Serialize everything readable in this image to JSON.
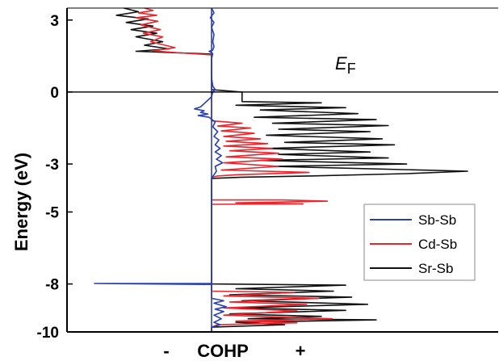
{
  "chart_data": {
    "type": "line",
    "orientation": "vertical-energy",
    "title": "",
    "xlabel": "COHP",
    "xlabel_negative": "-",
    "xlabel_positive": "+",
    "ylabel": "Energy (eV)",
    "ylim": [
      -10,
      3.5
    ],
    "xlim": [
      -1,
      1
    ],
    "yticks": [
      {
        "value": 3,
        "label": "3"
      },
      {
        "value": 0,
        "label": "0"
      },
      {
        "value": -3,
        "label": "-3"
      },
      {
        "value": -5,
        "label": "-5"
      },
      {
        "value": -8,
        "label": "-8"
      },
      {
        "value": -10,
        "label": "-10"
      }
    ],
    "fermi_label_main": "E",
    "fermi_label_sub": "F",
    "fermi_energy": 0,
    "legend_position": "lower-right",
    "series": [
      {
        "name": "Sb-Sb",
        "color": "#2b3fb0",
        "points": [
          [
            0.0,
            3.5
          ],
          [
            0.02,
            3.3
          ],
          [
            -0.01,
            3.1
          ],
          [
            0.02,
            2.9
          ],
          [
            0.0,
            2.7
          ],
          [
            0.02,
            2.4
          ],
          [
            0.01,
            2.1
          ],
          [
            0.02,
            1.9
          ],
          [
            0.01,
            1.75
          ],
          [
            -0.02,
            1.7
          ],
          [
            0.01,
            1.6
          ],
          [
            0.0,
            1.4
          ],
          [
            0.0,
            0.6
          ],
          [
            0.01,
            0.25
          ],
          [
            0.03,
            0.1
          ],
          [
            0.01,
            0.0
          ],
          [
            0.0,
            -0.2
          ],
          [
            -0.09,
            -0.62
          ],
          [
            -0.14,
            -0.7
          ],
          [
            -0.06,
            -0.78
          ],
          [
            -0.09,
            -0.85
          ],
          [
            -0.03,
            -0.92
          ],
          [
            -0.11,
            -0.98
          ],
          [
            -0.02,
            -1.05
          ],
          [
            0.03,
            -1.25
          ],
          [
            0.01,
            -1.45
          ],
          [
            0.05,
            -1.65
          ],
          [
            0.02,
            -1.85
          ],
          [
            0.06,
            -2.0
          ],
          [
            0.03,
            -2.2
          ],
          [
            0.07,
            -2.35
          ],
          [
            0.03,
            -2.5
          ],
          [
            0.08,
            -2.65
          ],
          [
            0.04,
            -2.8
          ],
          [
            0.09,
            -2.95
          ],
          [
            0.03,
            -3.1
          ],
          [
            0.04,
            -3.3
          ],
          [
            0.02,
            -3.45
          ],
          [
            0.0,
            -3.6
          ],
          [
            0.0,
            -7.98
          ],
          [
            -0.96,
            -7.98
          ],
          [
            0.0,
            -8.02
          ],
          [
            0.0,
            -8.6
          ],
          [
            0.1,
            -8.7
          ],
          [
            0.02,
            -8.8
          ],
          [
            0.12,
            -8.95
          ],
          [
            0.03,
            -9.05
          ],
          [
            0.1,
            -9.15
          ],
          [
            0.02,
            -9.3
          ],
          [
            0.08,
            -9.45
          ],
          [
            0.02,
            -9.6
          ],
          [
            0.07,
            -9.7
          ],
          [
            0.0,
            -9.8
          ],
          [
            0.0,
            -10
          ]
        ]
      },
      {
        "name": "Cd-Sb",
        "color": "#e8262e",
        "points": [
          [
            -0.55,
            3.5
          ],
          [
            -0.48,
            3.4
          ],
          [
            -0.6,
            3.3
          ],
          [
            -0.45,
            3.2
          ],
          [
            -0.62,
            3.1
          ],
          [
            -0.44,
            2.95
          ],
          [
            -0.58,
            2.8
          ],
          [
            -0.42,
            2.6
          ],
          [
            -0.56,
            2.45
          ],
          [
            -0.4,
            2.3
          ],
          [
            -0.5,
            2.1
          ],
          [
            -0.3,
            1.85
          ],
          [
            -0.48,
            1.72
          ],
          [
            -0.3,
            1.65
          ],
          [
            -0.1,
            1.58
          ],
          [
            0.0,
            1.55
          ],
          [
            0.0,
            -1.2
          ],
          [
            0.25,
            -1.3
          ],
          [
            0.05,
            -1.42
          ],
          [
            0.32,
            -1.5
          ],
          [
            0.08,
            -1.62
          ],
          [
            0.35,
            -1.72
          ],
          [
            0.1,
            -1.85
          ],
          [
            0.4,
            -1.95
          ],
          [
            0.12,
            -2.05
          ],
          [
            0.46,
            -2.15
          ],
          [
            0.1,
            -2.25
          ],
          [
            0.5,
            -2.35
          ],
          [
            0.15,
            -2.45
          ],
          [
            0.55,
            -2.55
          ],
          [
            0.12,
            -2.7
          ],
          [
            0.58,
            -2.8
          ],
          [
            0.1,
            -2.95
          ],
          [
            0.55,
            -3.1
          ],
          [
            0.08,
            -3.25
          ],
          [
            0.8,
            -3.35
          ],
          [
            0.2,
            -3.45
          ],
          [
            0.05,
            -3.5
          ],
          [
            0.0,
            -3.55
          ],
          [
            0.0,
            -4.5
          ],
          [
            0.58,
            -4.5
          ],
          [
            0.95,
            -4.55
          ],
          [
            0.2,
            -4.62
          ],
          [
            0.75,
            -4.66
          ],
          [
            0.0,
            -4.68
          ],
          [
            0.0,
            -8.3
          ],
          [
            0.68,
            -8.35
          ],
          [
            0.1,
            -8.5
          ],
          [
            0.88,
            -8.6
          ],
          [
            0.15,
            -8.75
          ],
          [
            0.78,
            -8.85
          ],
          [
            0.1,
            -9.0
          ],
          [
            0.7,
            -9.12
          ],
          [
            0.1,
            -9.3
          ],
          [
            0.99,
            -9.45
          ],
          [
            0.2,
            -9.55
          ],
          [
            0.7,
            -9.62
          ],
          [
            0.05,
            -9.7
          ],
          [
            0.0,
            -9.8
          ],
          [
            0.0,
            -10
          ]
        ]
      },
      {
        "name": "Sr-Sb",
        "color": "#111111",
        "points": [
          [
            -0.72,
            3.5
          ],
          [
            -0.6,
            3.35
          ],
          [
            -0.78,
            3.2
          ],
          [
            -0.52,
            3.05
          ],
          [
            -0.7,
            2.9
          ],
          [
            -0.48,
            2.75
          ],
          [
            -0.66,
            2.6
          ],
          [
            -0.45,
            2.45
          ],
          [
            -0.62,
            2.3
          ],
          [
            -0.4,
            2.1
          ],
          [
            -0.55,
            1.95
          ],
          [
            -0.35,
            1.8
          ],
          [
            -0.62,
            1.7
          ],
          [
            -0.2,
            1.62
          ],
          [
            0.0,
            1.58
          ],
          [
            0.0,
            0.1
          ],
          [
            0.1,
            0.06
          ],
          [
            0.2,
            0.02
          ],
          [
            0.25,
            0.0
          ],
          [
            0.25,
            -0.4
          ],
          [
            0.9,
            -0.45
          ],
          [
            0.2,
            -0.55
          ],
          [
            1.1,
            -0.65
          ],
          [
            0.4,
            -0.75
          ],
          [
            1.2,
            -0.9
          ],
          [
            0.35,
            -1.05
          ],
          [
            1.35,
            -1.15
          ],
          [
            0.5,
            -1.3
          ],
          [
            1.45,
            -1.4
          ],
          [
            0.55,
            -1.55
          ],
          [
            1.3,
            -1.65
          ],
          [
            0.45,
            -1.8
          ],
          [
            1.4,
            -1.95
          ],
          [
            0.6,
            -2.1
          ],
          [
            1.5,
            -2.2
          ],
          [
            0.45,
            -2.35
          ],
          [
            1.3,
            -2.5
          ],
          [
            0.55,
            -2.6
          ],
          [
            1.45,
            -2.75
          ],
          [
            0.4,
            -2.85
          ],
          [
            1.6,
            -3.0
          ],
          [
            0.5,
            -3.1
          ],
          [
            2.1,
            -3.3
          ],
          [
            1.6,
            -3.4
          ],
          [
            0.8,
            -3.5
          ],
          [
            0.25,
            -3.55
          ],
          [
            0.0,
            -3.6
          ],
          [
            0.0,
            -8.0
          ],
          [
            1.1,
            -8.05
          ],
          [
            0.2,
            -8.2
          ],
          [
            1.0,
            -8.3
          ],
          [
            0.15,
            -8.45
          ],
          [
            1.15,
            -8.55
          ],
          [
            0.25,
            -8.7
          ],
          [
            1.28,
            -8.85
          ],
          [
            0.2,
            -9.0
          ],
          [
            1.1,
            -9.1
          ],
          [
            0.15,
            -9.25
          ],
          [
            0.9,
            -9.35
          ],
          [
            0.3,
            -9.45
          ],
          [
            1.35,
            -9.5
          ],
          [
            0.2,
            -9.6
          ],
          [
            0.6,
            -9.7
          ],
          [
            0.0,
            -9.8
          ],
          [
            0.0,
            -10
          ]
        ]
      }
    ]
  }
}
